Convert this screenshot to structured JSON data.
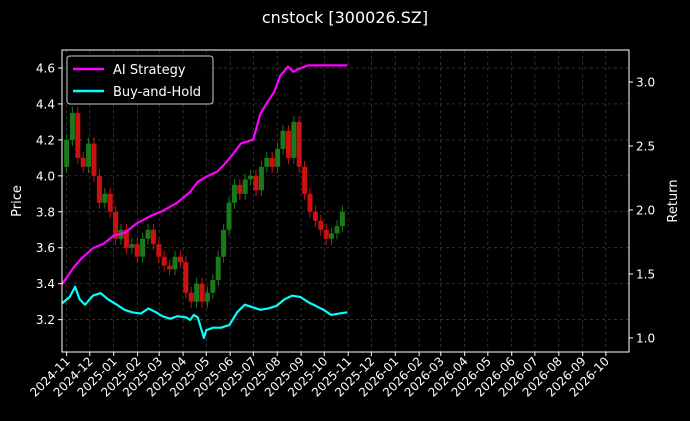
{
  "chart_data": {
    "type": "line",
    "title": "cnstock [300026.SZ]",
    "ylabel_left": "Price",
    "ylabel_right": "Return",
    "ylim_left": [
      3.02,
      4.7
    ],
    "ylim_right": [
      0.89,
      3.25
    ],
    "yticks_left": [
      "3.2",
      "3.4",
      "3.6",
      "3.8",
      "4.0",
      "4.2",
      "4.4",
      "4.6"
    ],
    "yticks_right": [
      "1.0",
      "1.5",
      "2.0",
      "2.5",
      "3.0"
    ],
    "x_start": "2024-10-26",
    "x_end": "2026-10-31",
    "xticks": [
      "2024-11",
      "2024-12",
      "2025-01",
      "2025-02",
      "2025-03",
      "2025-04",
      "2025-05",
      "2025-06",
      "2025-07",
      "2025-08",
      "2025-09",
      "2025-10",
      "2025-11",
      "2025-12",
      "2026-01",
      "2026-02",
      "2026-03",
      "2026-04",
      "2026-05",
      "2026-06",
      "2026-07",
      "2026-08",
      "2026-09",
      "2026-10"
    ],
    "grid": true,
    "legend_position": "upper-left",
    "colors": {
      "up": "#1a7a1a",
      "down": "#cc1111",
      "strategy": "#ff00ff",
      "buyhold": "#00ffff"
    },
    "candles_close": [
      {
        "date": "2024-10-28",
        "close": 4.05
      },
      {
        "date": "2024-11-05",
        "close": 4.2
      },
      {
        "date": "2024-11-12",
        "close": 4.35
      },
      {
        "date": "2024-11-19",
        "close": 4.1
      },
      {
        "date": "2024-11-26",
        "close": 4.05
      },
      {
        "date": "2024-12-03",
        "close": 4.18
      },
      {
        "date": "2024-12-10",
        "close": 4.0
      },
      {
        "date": "2024-12-17",
        "close": 3.85
      },
      {
        "date": "2024-12-24",
        "close": 3.9
      },
      {
        "date": "2024-12-31",
        "close": 3.8
      },
      {
        "date": "2025-01-07",
        "close": 3.65
      },
      {
        "date": "2025-01-14",
        "close": 3.7
      },
      {
        "date": "2025-01-21",
        "close": 3.6
      },
      {
        "date": "2025-01-28",
        "close": 3.62
      },
      {
        "date": "2025-02-04",
        "close": 3.55
      },
      {
        "date": "2025-02-11",
        "close": 3.65
      },
      {
        "date": "2025-02-18",
        "close": 3.7
      },
      {
        "date": "2025-02-25",
        "close": 3.62
      },
      {
        "date": "2025-03-04",
        "close": 3.55
      },
      {
        "date": "2025-03-11",
        "close": 3.5
      },
      {
        "date": "2025-03-18",
        "close": 3.48
      },
      {
        "date": "2025-03-25",
        "close": 3.55
      },
      {
        "date": "2025-04-01",
        "close": 3.52
      },
      {
        "date": "2025-04-08",
        "close": 3.35
      },
      {
        "date": "2025-04-15",
        "close": 3.3
      },
      {
        "date": "2025-04-22",
        "close": 3.4
      },
      {
        "date": "2025-04-29",
        "close": 3.3
      },
      {
        "date": "2025-05-06",
        "close": 3.35
      },
      {
        "date": "2025-05-13",
        "close": 3.42
      },
      {
        "date": "2025-05-20",
        "close": 3.55
      },
      {
        "date": "2025-05-27",
        "close": 3.7
      },
      {
        "date": "2025-06-03",
        "close": 3.85
      },
      {
        "date": "2025-06-10",
        "close": 3.95
      },
      {
        "date": "2025-06-17",
        "close": 3.9
      },
      {
        "date": "2025-06-24",
        "close": 3.98
      },
      {
        "date": "2025-07-01",
        "close": 4.0
      },
      {
        "date": "2025-07-08",
        "close": 3.92
      },
      {
        "date": "2025-07-15",
        "close": 4.05
      },
      {
        "date": "2025-07-22",
        "close": 4.1
      },
      {
        "date": "2025-07-29",
        "close": 4.05
      },
      {
        "date": "2025-08-05",
        "close": 4.15
      },
      {
        "date": "2025-08-12",
        "close": 4.25
      },
      {
        "date": "2025-08-19",
        "close": 4.1
      },
      {
        "date": "2025-08-26",
        "close": 4.3
      },
      {
        "date": "2025-09-02",
        "close": 4.05
      },
      {
        "date": "2025-09-09",
        "close": 3.9
      },
      {
        "date": "2025-09-16",
        "close": 3.8
      },
      {
        "date": "2025-09-23",
        "close": 3.75
      },
      {
        "date": "2025-09-30",
        "close": 3.7
      },
      {
        "date": "2025-10-07",
        "close": 3.65
      },
      {
        "date": "2025-10-14",
        "close": 3.68
      },
      {
        "date": "2025-10-21",
        "close": 3.72
      },
      {
        "date": "2025-10-28",
        "close": 3.8
      }
    ],
    "series": [
      {
        "name": "AI Strategy",
        "points": [
          {
            "date": "2024-10-26",
            "value": 1.42
          },
          {
            "date": "2024-11-02",
            "value": 1.48
          },
          {
            "date": "2024-11-10",
            "value": 1.55
          },
          {
            "date": "2024-11-20",
            "value": 1.62
          },
          {
            "date": "2024-12-05",
            "value": 1.7
          },
          {
            "date": "2024-12-20",
            "value": 1.74
          },
          {
            "date": "2025-01-01",
            "value": 1.8
          },
          {
            "date": "2025-01-15",
            "value": 1.82
          },
          {
            "date": "2025-02-01",
            "value": 1.9
          },
          {
            "date": "2025-02-20",
            "value": 1.96
          },
          {
            "date": "2025-03-05",
            "value": 1.99
          },
          {
            "date": "2025-03-25",
            "value": 2.06
          },
          {
            "date": "2025-04-10",
            "value": 2.14
          },
          {
            "date": "2025-04-20",
            "value": 2.22
          },
          {
            "date": "2025-05-01",
            "value": 2.26
          },
          {
            "date": "2025-05-15",
            "value": 2.3
          },
          {
            "date": "2025-05-25",
            "value": 2.36
          },
          {
            "date": "2025-06-05",
            "value": 2.44
          },
          {
            "date": "2025-06-15",
            "value": 2.52
          },
          {
            "date": "2025-07-01",
            "value": 2.55
          },
          {
            "date": "2025-07-10",
            "value": 2.75
          },
          {
            "date": "2025-07-20",
            "value": 2.85
          },
          {
            "date": "2025-07-28",
            "value": 2.92
          },
          {
            "date": "2025-08-05",
            "value": 3.05
          },
          {
            "date": "2025-08-15",
            "value": 3.12
          },
          {
            "date": "2025-08-22",
            "value": 3.08
          },
          {
            "date": "2025-08-28",
            "value": 3.1
          },
          {
            "date": "2025-09-10",
            "value": 3.13
          },
          {
            "date": "2025-10-20",
            "value": 3.13
          },
          {
            "date": "2025-10-31",
            "value": 3.13
          }
        ]
      },
      {
        "name": "Buy-and-Hold",
        "points": [
          {
            "date": "2024-10-26",
            "value": 1.27
          },
          {
            "date": "2024-11-05",
            "value": 1.32
          },
          {
            "date": "2024-11-12",
            "value": 1.4
          },
          {
            "date": "2024-11-18",
            "value": 1.3
          },
          {
            "date": "2024-11-25",
            "value": 1.26
          },
          {
            "date": "2024-12-05",
            "value": 1.33
          },
          {
            "date": "2024-12-15",
            "value": 1.35
          },
          {
            "date": "2024-12-25",
            "value": 1.3
          },
          {
            "date": "2025-01-05",
            "value": 1.26
          },
          {
            "date": "2025-01-15",
            "value": 1.22
          },
          {
            "date": "2025-01-25",
            "value": 1.2
          },
          {
            "date": "2025-02-05",
            "value": 1.19
          },
          {
            "date": "2025-02-15",
            "value": 1.23
          },
          {
            "date": "2025-02-25",
            "value": 1.2
          },
          {
            "date": "2025-03-05",
            "value": 1.17
          },
          {
            "date": "2025-03-15",
            "value": 1.15
          },
          {
            "date": "2025-03-25",
            "value": 1.17
          },
          {
            "date": "2025-04-05",
            "value": 1.16
          },
          {
            "date": "2025-04-10",
            "value": 1.14
          },
          {
            "date": "2025-04-15",
            "value": 1.18
          },
          {
            "date": "2025-04-20",
            "value": 1.16
          },
          {
            "date": "2025-04-28",
            "value": 1.0
          },
          {
            "date": "2025-05-01",
            "value": 1.06
          },
          {
            "date": "2025-05-10",
            "value": 1.08
          },
          {
            "date": "2025-05-20",
            "value": 1.08
          },
          {
            "date": "2025-05-31",
            "value": 1.1
          },
          {
            "date": "2025-06-10",
            "value": 1.2
          },
          {
            "date": "2025-06-20",
            "value": 1.26
          },
          {
            "date": "2025-06-30",
            "value": 1.24
          },
          {
            "date": "2025-07-10",
            "value": 1.22
          },
          {
            "date": "2025-07-20",
            "value": 1.23
          },
          {
            "date": "2025-07-31",
            "value": 1.25
          },
          {
            "date": "2025-08-10",
            "value": 1.3
          },
          {
            "date": "2025-08-20",
            "value": 1.33
          },
          {
            "date": "2025-08-31",
            "value": 1.32
          },
          {
            "date": "2025-09-10",
            "value": 1.28
          },
          {
            "date": "2025-09-20",
            "value": 1.25
          },
          {
            "date": "2025-09-30",
            "value": 1.22
          },
          {
            "date": "2025-10-10",
            "value": 1.18
          },
          {
            "date": "2025-10-20",
            "value": 1.19
          },
          {
            "date": "2025-10-31",
            "value": 1.2
          }
        ]
      }
    ]
  }
}
